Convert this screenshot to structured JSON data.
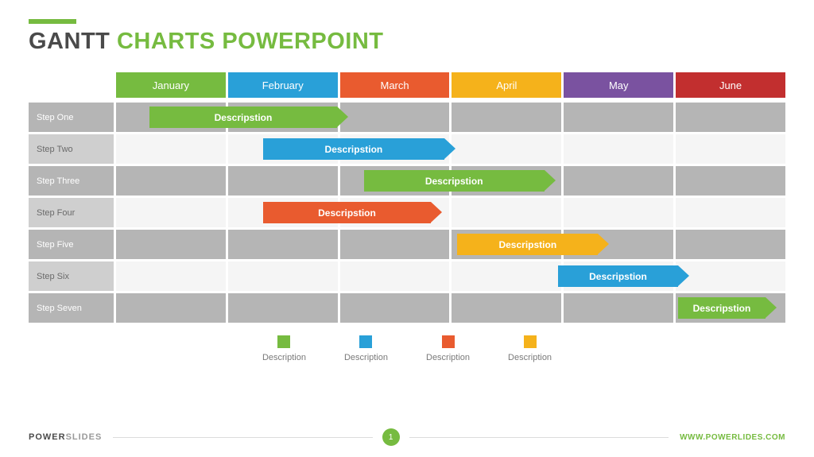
{
  "accent_color": "#76bb40",
  "title": {
    "part1": "GANTT ",
    "part2": "CHARTS POWERPOINT",
    "part1_color": "#4a4a4a",
    "part2_color": "#76bb40"
  },
  "colors": {
    "green": "#76bb40",
    "blue": "#29a0d8",
    "orange": "#e95b2f",
    "yellow": "#f5b21b",
    "purple": "#7a52a0",
    "red": "#c22f2f",
    "grid_grey": "#b5b5b5",
    "grid_light": "#f5f5f5",
    "label_grey": "#cfcfcf"
  },
  "months": [
    {
      "label": "January",
      "color": "#76bb40"
    },
    {
      "label": "February",
      "color": "#29a0d8"
    },
    {
      "label": "March",
      "color": "#e95b2f"
    },
    {
      "label": "April",
      "color": "#f5b21b"
    },
    {
      "label": "May",
      "color": "#7a52a0"
    },
    {
      "label": "June",
      "color": "#c22f2f"
    }
  ],
  "rows": [
    {
      "label": "Step One",
      "shade": "odd",
      "bar": {
        "label": "Descripstion",
        "color": "#76bb40",
        "start_pct": 5,
        "width_pct": 28
      }
    },
    {
      "label": "Step Two",
      "shade": "even",
      "bar": {
        "label": "Descripstion",
        "color": "#29a0d8",
        "start_pct": 22,
        "width_pct": 27
      }
    },
    {
      "label": "Step Three",
      "shade": "odd",
      "bar": {
        "label": "Descripstion",
        "color": "#76bb40",
        "start_pct": 37,
        "width_pct": 27
      }
    },
    {
      "label": "Step Four",
      "shade": "even",
      "bar": {
        "label": "Descripstion",
        "color": "#e95b2f",
        "start_pct": 22,
        "width_pct": 25
      }
    },
    {
      "label": "Step Five",
      "shade": "odd",
      "bar": {
        "label": "Descripstion",
        "color": "#f5b21b",
        "start_pct": 51,
        "width_pct": 21
      }
    },
    {
      "label": "Step Six",
      "shade": "even",
      "bar": {
        "label": "Descripstion",
        "color": "#29a0d8",
        "start_pct": 66,
        "width_pct": 18
      }
    },
    {
      "label": "Step Seven",
      "shade": "odd",
      "bar": {
        "label": "Descripstion",
        "color": "#76bb40",
        "start_pct": 84,
        "width_pct": 13
      }
    }
  ],
  "legend": [
    {
      "label": "Description",
      "color": "#76bb40"
    },
    {
      "label": "Description",
      "color": "#29a0d8"
    },
    {
      "label": "Description",
      "color": "#e95b2f"
    },
    {
      "label": "Description",
      "color": "#f5b21b"
    }
  ],
  "footer": {
    "brand_part1": "POWER",
    "brand_part2": "SLIDES",
    "page": "1",
    "url": "WWW.POWERLIDES.COM"
  }
}
